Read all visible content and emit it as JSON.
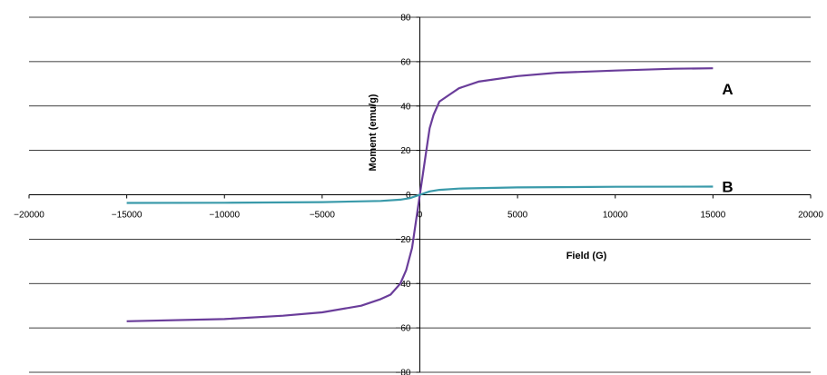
{
  "chart_data": {
    "type": "line",
    "title": "",
    "xlabel": "Field (G)",
    "ylabel": "Moment (emu/g)",
    "xlim": [
      -20000,
      20000
    ],
    "ylim": [
      -80,
      80
    ],
    "x_ticks": [
      -20000,
      -15000,
      -10000,
      -5000,
      0,
      5000,
      10000,
      15000,
      20000
    ],
    "x_tick_labels": [
      "−20000",
      "−15000",
      "−10000",
      "−5000",
      "0",
      "5000",
      "10000",
      "15000",
      "20000"
    ],
    "y_ticks": [
      -80,
      -60,
      -40,
      -20,
      0,
      20,
      40,
      60,
      80
    ],
    "y_tick_labels": [
      "−80",
      "−60",
      "−40",
      "−20",
      "0",
      "20",
      "40",
      "60",
      "80"
    ],
    "grid": "horizontal",
    "series": [
      {
        "name": "A",
        "color": "#6a3d9a",
        "points": [
          [
            -15000,
            -57
          ],
          [
            -10000,
            -56
          ],
          [
            -7000,
            -54.5
          ],
          [
            -5000,
            -53
          ],
          [
            -3000,
            -50
          ],
          [
            -2000,
            -47
          ],
          [
            -1500,
            -45
          ],
          [
            -1000,
            -40
          ],
          [
            -700,
            -34
          ],
          [
            -400,
            -24
          ],
          [
            -200,
            -12
          ],
          [
            0,
            0
          ],
          [
            200,
            12
          ],
          [
            400,
            24
          ],
          [
            500,
            30
          ],
          [
            700,
            36
          ],
          [
            1000,
            42
          ],
          [
            1500,
            45
          ],
          [
            2000,
            48
          ],
          [
            3000,
            51
          ],
          [
            5000,
            53.5
          ],
          [
            7000,
            55
          ],
          [
            10000,
            56
          ],
          [
            13000,
            56.8
          ],
          [
            15000,
            57
          ]
        ]
      },
      {
        "name": "B",
        "color": "#3a9aaa",
        "points": [
          [
            -15000,
            -3.7
          ],
          [
            -10000,
            -3.6
          ],
          [
            -5000,
            -3.3
          ],
          [
            -2000,
            -2.8
          ],
          [
            -1000,
            -2.2
          ],
          [
            -500,
            -1.5
          ],
          [
            0,
            0
          ],
          [
            500,
            1.5
          ],
          [
            1000,
            2.2
          ],
          [
            2000,
            2.8
          ],
          [
            5000,
            3.3
          ],
          [
            10000,
            3.6
          ],
          [
            15000,
            3.7
          ]
        ]
      }
    ]
  }
}
